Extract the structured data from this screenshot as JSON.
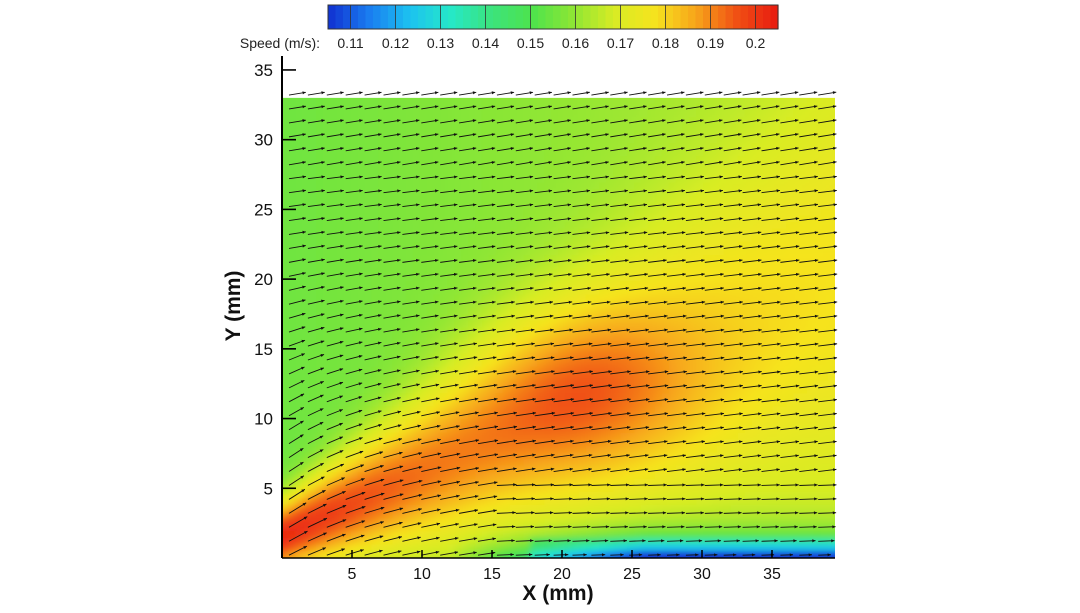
{
  "chart_data": {
    "type": "heatmap",
    "subtype": "vector-field-contour",
    "xlabel": "X (mm)",
    "ylabel": "Y (mm)",
    "xlim": [
      0,
      39.5
    ],
    "ylim": [
      0,
      36
    ],
    "x_ticks": [
      5,
      10,
      15,
      20,
      25,
      30,
      35
    ],
    "y_ticks": [
      5,
      10,
      15,
      20,
      25,
      30,
      35
    ],
    "field_extent": {
      "x": [
        0,
        39.5
      ],
      "y": [
        0,
        33
      ]
    },
    "colorbar": {
      "label": "Speed (m/s):",
      "placement": "top",
      "min": 0.105,
      "max": 0.205,
      "ticks": [
        0.11,
        0.12,
        0.13,
        0.14,
        0.15,
        0.16,
        0.17,
        0.18,
        0.19,
        0.2
      ],
      "tick_labels": [
        "0.11",
        "0.12",
        "0.13",
        "0.14",
        "0.15",
        "0.16",
        "0.17",
        "0.18",
        "0.19",
        "0.2"
      ],
      "colormap": [
        "#1030d0",
        "#1a7cf0",
        "#1cc2f0",
        "#25e8c8",
        "#3ce37c",
        "#4ee34c",
        "#8fe634",
        "#d8ec24",
        "#f6e31e",
        "#f7a41a",
        "#f04f14",
        "#e81a10"
      ]
    },
    "vector_color": "#000000",
    "vector_grid": {
      "x_spacing": 1.35,
      "y_spacing": 1.0,
      "x_start": 0.5,
      "y_start": 0.2
    },
    "speed_field": {
      "description_points": [
        {
          "x": 6,
          "y": 5,
          "speed": 0.2
        },
        {
          "x": 10,
          "y": 10,
          "speed": 0.195
        },
        {
          "x": 15,
          "y": 15,
          "speed": 0.185
        },
        {
          "x": 25,
          "y": 10,
          "speed": 0.178
        },
        {
          "x": 30,
          "y": 5,
          "speed": 0.162
        },
        {
          "x": 35,
          "y": 1.5,
          "speed": 0.13
        },
        {
          "x": 30,
          "y": 0.4,
          "speed": 0.11
        },
        {
          "x": 5,
          "y": 30,
          "speed": 0.155
        },
        {
          "x": 35,
          "y": 25,
          "speed": 0.165
        }
      ]
    }
  }
}
